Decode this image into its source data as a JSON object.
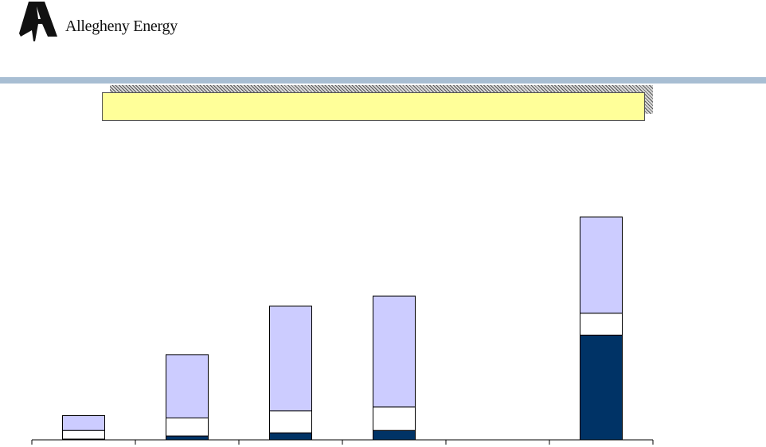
{
  "header": {
    "company_name": "Allegheny Energy",
    "logo_icon": "allegheny-a-mark-icon"
  },
  "banner": {
    "text": "",
    "color": "#ffff99"
  },
  "colors": {
    "rule": "#a8bed3",
    "bottom": "#003366",
    "middle": "#ffffff",
    "top": "#ccccff"
  },
  "chart_data": {
    "type": "bar",
    "stacked": true,
    "categories": [
      "",
      "",
      "",
      "",
      "",
      ""
    ],
    "series": [
      {
        "values": [
          1,
          5,
          9,
          12,
          0,
          134
        ],
        "color": "#003366"
      },
      {
        "values": [
          11,
          23,
          28,
          30,
          0,
          28
        ],
        "color": "#ffffff"
      },
      {
        "values": [
          19,
          81,
          134,
          142,
          0,
          123
        ],
        "color": "#ccccff"
      }
    ],
    "ylim": [
      0,
      290
    ],
    "grid": false,
    "legend": "none",
    "title": "",
    "xlabel": "",
    "ylabel": ""
  }
}
